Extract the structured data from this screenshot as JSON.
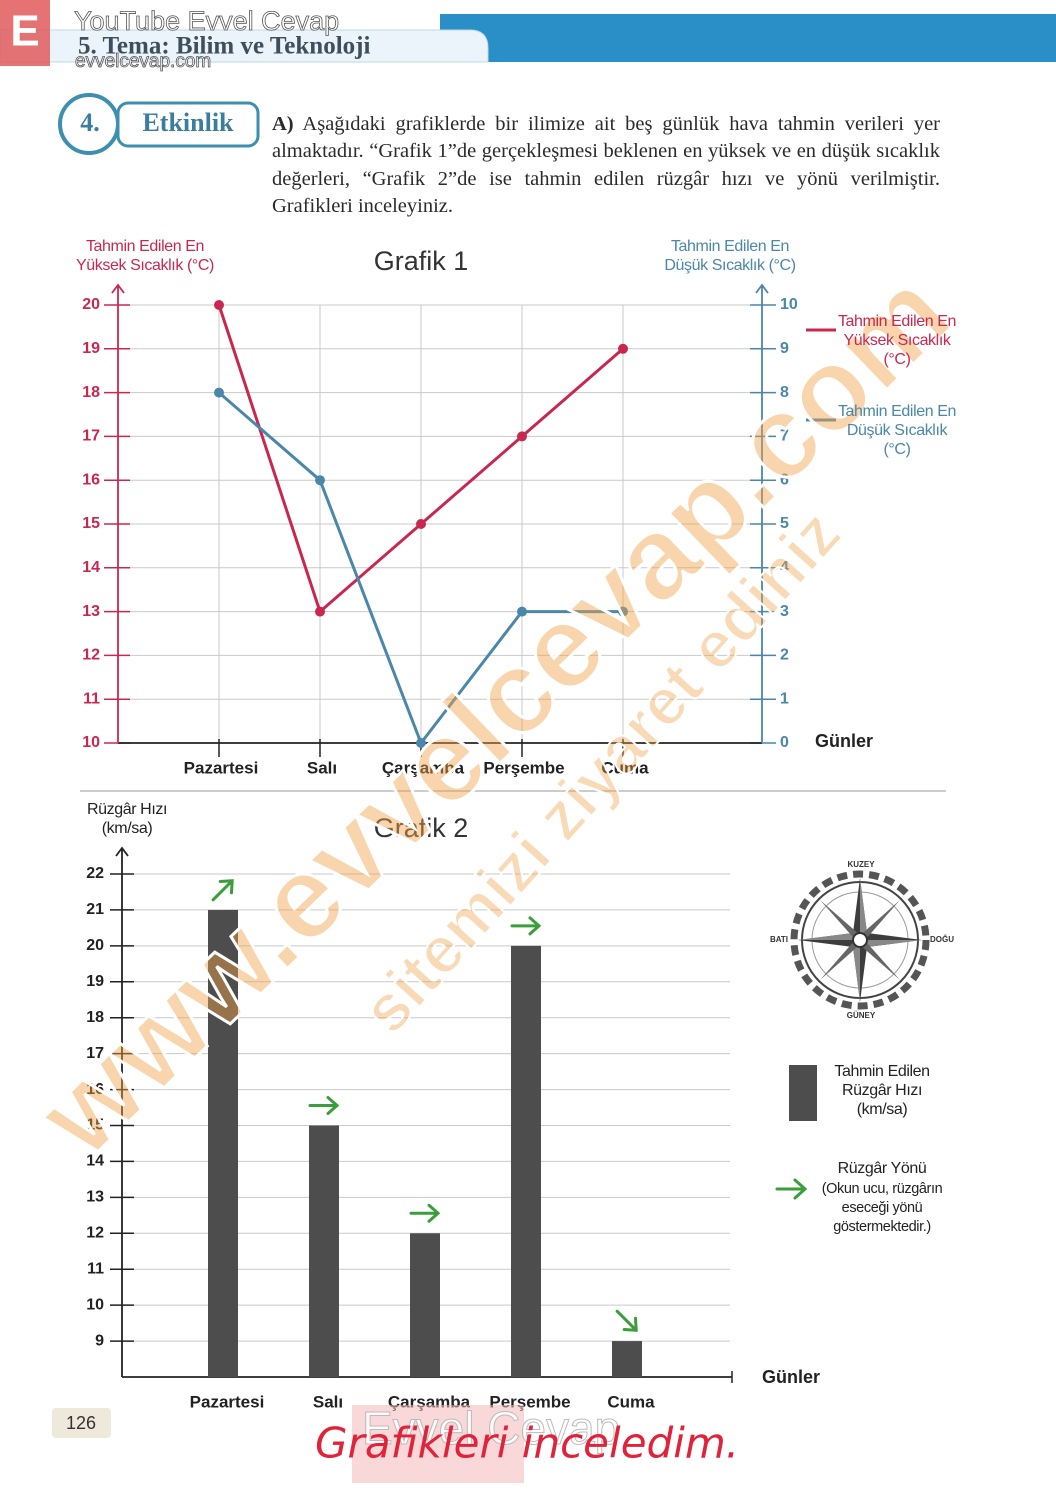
{
  "header": {
    "letter": "E",
    "channel": "YouTube Evvel Cevap",
    "theme": "5. Tema: Bilim ve Teknoloji",
    "site": "evvelcevap.com"
  },
  "activity": {
    "number": "4.",
    "label": "Etkinlik",
    "part": "A)",
    "text": "Aşağıdaki grafiklerde bir ilimize ait beş günlük hava tahmin verileri yer almaktadır. “Grafik 1”de gerçekleşmesi beklenen en yüksek ve en düşük sıcaklık değerleri, “Grafik 2”de ise tahmin edilen rüzgâr hızı ve yönü verilmiştir. Grafikleri inceleyiniz."
  },
  "chart_data": [
    {
      "type": "line",
      "title": "Grafik 1",
      "ylabel": "Tahmin Edilen En Yüksek Sıcaklık (°C)",
      "y2label": "Tahmin Edilen En Düşük Sıcaklık (°C)",
      "xlabel": "Günler",
      "categories": [
        "Pazartesi",
        "Salı",
        "Çarşamba",
        "Perşembe",
        "Cuma"
      ],
      "ylim": [
        10,
        20
      ],
      "yticks": [
        10,
        11,
        12,
        13,
        14,
        15,
        16,
        17,
        18,
        19,
        20
      ],
      "y2lim": [
        0,
        10
      ],
      "y2ticks": [
        0,
        1,
        2,
        3,
        4,
        5,
        6,
        7,
        8,
        9,
        10
      ],
      "grid": true,
      "legend": "right",
      "series": [
        {
          "name": "Tahmin Edilen En Yüksek Sıcaklık (°C)",
          "color": "#c8284f",
          "values": [
            20,
            13,
            15,
            17,
            19
          ]
        },
        {
          "name": "Tahmin Edilen En Düşük Sıcaklık (°C)",
          "color": "#4a87a8",
          "axis": "y2",
          "values": [
            8,
            6,
            0,
            3,
            3
          ]
        }
      ]
    },
    {
      "type": "bar",
      "title": "Grafik 2",
      "ylabel": "Rüzgâr Hızı (km/sa)",
      "xlabel": "Günler",
      "categories": [
        "Pazartesi",
        "Salı",
        "Çarşamba",
        "Perşembe",
        "Cuma"
      ],
      "ylim": [
        8,
        22
      ],
      "yticks": [
        9,
        10,
        11,
        12,
        13,
        14,
        15,
        16,
        17,
        18,
        19,
        20,
        21,
        22
      ],
      "grid": true,
      "legend": "right",
      "series": [
        {
          "name": "Tahmin Edilen Rüzgâr Hızı (km/sa)",
          "color": "#4d4d4d",
          "values": [
            21,
            15,
            12,
            20,
            9
          ]
        }
      ],
      "wind_direction": {
        "name": "Rüzgâr Yönü",
        "note": "(Okun ucu, rüzgârın eseceği yönü göstermektedir.)",
        "color": "#3a9e3a",
        "values": [
          45,
          90,
          90,
          90,
          135
        ]
      },
      "compass": {
        "north": "KUZEY",
        "east": "DOĞU",
        "south": "GÜNEY",
        "west": "BATI"
      }
    }
  ],
  "page_number": "126",
  "answer": "Grafikleri inceledim.",
  "watermark": {
    "site": "www.evvelcevap.com",
    "invite": "sitemizi ziyaret ediniz",
    "footer": "Evvel Cevap"
  }
}
